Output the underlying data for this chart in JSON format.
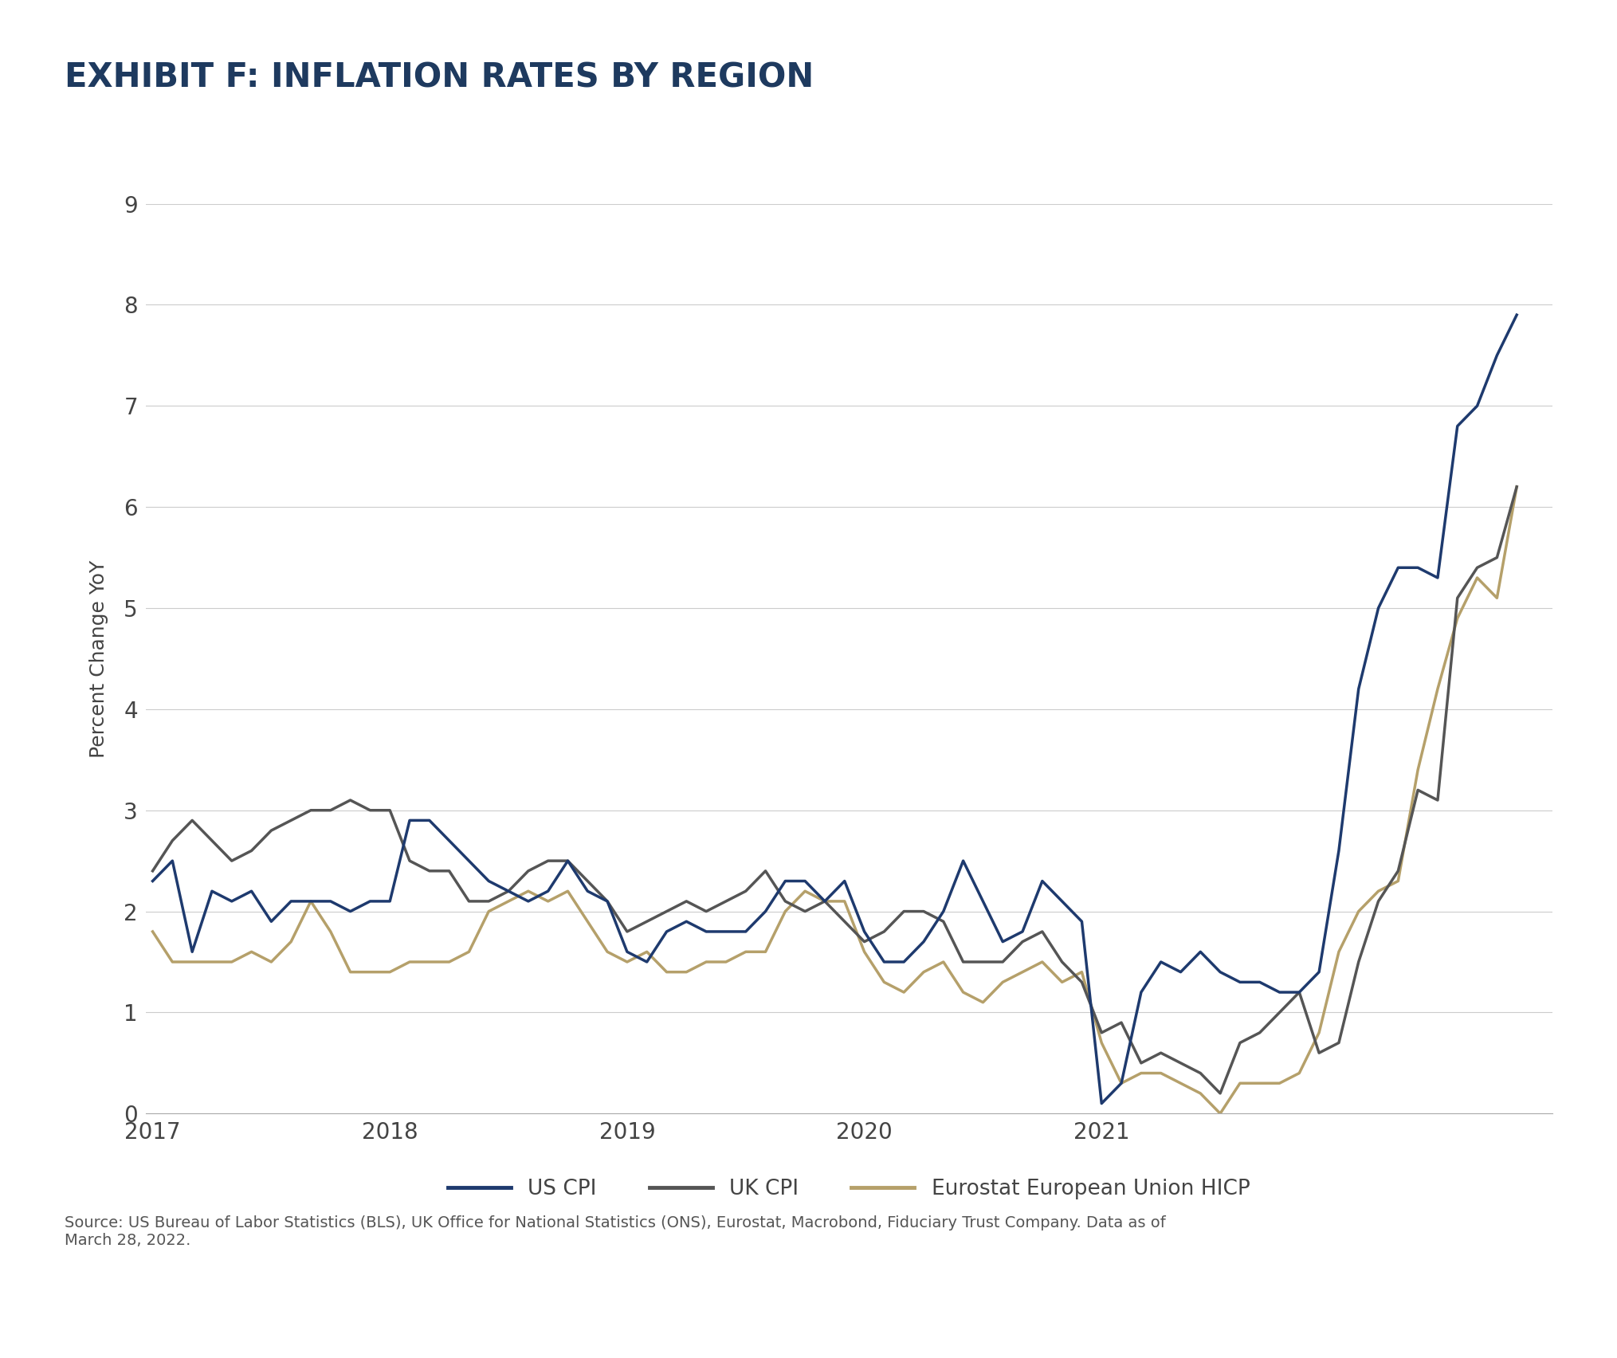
{
  "title": "EXHIBIT F: INFLATION RATES BY REGION",
  "ylabel": "Percent Change YoY",
  "source_text": "Source: US Bureau of Labor Statistics (BLS), UK Office for National Statistics (ONS), Eurostat, Macrobond, Fiduciary Trust Company. Data as of\nMarch 28, 2022.",
  "ylim": [
    0,
    9
  ],
  "yticks": [
    0,
    1,
    2,
    3,
    4,
    5,
    6,
    7,
    8,
    9
  ],
  "xtick_years": [
    "2017",
    "2018",
    "2019",
    "2020",
    "2021"
  ],
  "title_color": "#1e3a5f",
  "us_cpi_color": "#1e3a6e",
  "uk_cpi_color": "#555555",
  "eu_hicp_color": "#b5a06a",
  "legend_labels": [
    "US CPI",
    "UK CPI",
    "Eurostat European Union HICP"
  ],
  "us_cpi": [
    2.3,
    2.5,
    1.6,
    2.2,
    2.1,
    2.2,
    1.9,
    2.1,
    2.1,
    2.1,
    2.0,
    2.1,
    2.1,
    2.9,
    2.9,
    2.7,
    2.5,
    2.3,
    2.2,
    2.1,
    2.2,
    2.5,
    2.2,
    2.1,
    1.6,
    1.5,
    1.8,
    1.9,
    1.8,
    1.8,
    1.8,
    2.0,
    2.3,
    2.3,
    2.1,
    2.3,
    1.8,
    1.5,
    1.5,
    1.7,
    2.0,
    2.5,
    2.1,
    1.7,
    1.8,
    2.3,
    2.1,
    1.9,
    0.1,
    0.3,
    1.2,
    1.5,
    1.4,
    1.6,
    1.4,
    1.3,
    1.3,
    1.2,
    1.2,
    1.4,
    2.6,
    4.2,
    5.0,
    5.4,
    5.4,
    5.3,
    6.8,
    7.0,
    7.5,
    7.9
  ],
  "uk_cpi": [
    2.4,
    2.7,
    2.9,
    2.7,
    2.5,
    2.6,
    2.8,
    2.9,
    3.0,
    3.0,
    3.1,
    3.0,
    3.0,
    2.5,
    2.4,
    2.4,
    2.1,
    2.1,
    2.2,
    2.4,
    2.5,
    2.5,
    2.3,
    2.1,
    1.8,
    1.9,
    2.0,
    2.1,
    2.0,
    2.1,
    2.2,
    2.4,
    2.1,
    2.0,
    2.1,
    1.9,
    1.7,
    1.8,
    2.0,
    2.0,
    1.9,
    1.5,
    1.5,
    1.5,
    1.7,
    1.8,
    1.5,
    1.3,
    0.8,
    0.9,
    0.5,
    0.6,
    0.5,
    0.4,
    0.2,
    0.7,
    0.8,
    1.0,
    1.2,
    0.6,
    0.7,
    1.5,
    2.1,
    2.4,
    3.2,
    3.1,
    5.1,
    5.4,
    5.5,
    6.2
  ],
  "eu_hicp": [
    1.8,
    1.5,
    1.5,
    1.5,
    1.5,
    1.6,
    1.5,
    1.7,
    2.1,
    1.8,
    1.4,
    1.4,
    1.4,
    1.5,
    1.5,
    1.5,
    1.6,
    2.0,
    2.1,
    2.2,
    2.1,
    2.2,
    1.9,
    1.6,
    1.5,
    1.6,
    1.4,
    1.4,
    1.5,
    1.5,
    1.6,
    1.6,
    2.0,
    2.2,
    2.1,
    2.1,
    1.6,
    1.3,
    1.2,
    1.4,
    1.5,
    1.2,
    1.1,
    1.3,
    1.4,
    1.5,
    1.3,
    1.4,
    0.7,
    0.3,
    0.4,
    0.4,
    0.3,
    0.2,
    0.0,
    0.3,
    0.3,
    0.3,
    0.4,
    0.8,
    1.6,
    2.0,
    2.2,
    2.3,
    3.4,
    4.2,
    4.9,
    5.3,
    5.1,
    6.2
  ],
  "fig_width": 20.29,
  "fig_height": 17.04,
  "dpi": 100
}
